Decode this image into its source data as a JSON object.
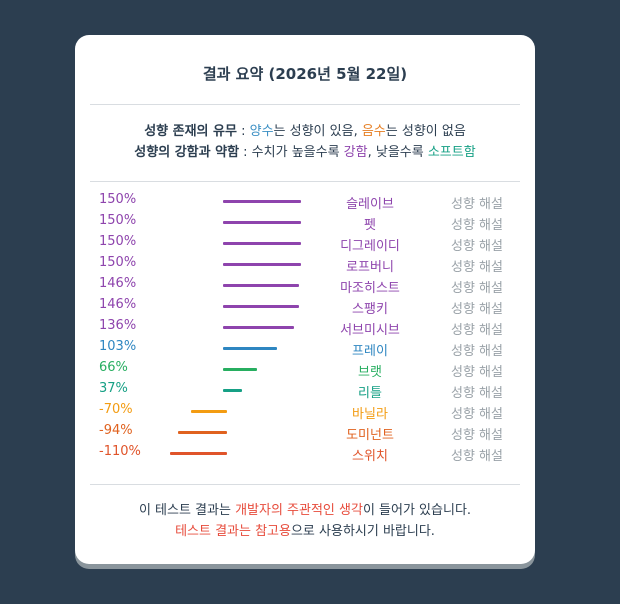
{
  "title": "결과 요약 (2026년 5월 22일)",
  "legend": {
    "line1": {
      "label": "성향 존재의 유무",
      "sep": " : ",
      "positive": "양수",
      "pos_text": "는 성향이 있음, ",
      "negative": "음수",
      "neg_text": "는 성향이 없음"
    },
    "line2": {
      "label": "성향의 강함과 약함",
      "sep": " : 수치가 높을수록 ",
      "strong": "강함",
      "mid": ", 낮을수록 ",
      "soft": "소프트함"
    }
  },
  "colors": {
    "purple": "#8e44ad",
    "blue": "#2e86c1",
    "green": "#27ae60",
    "teal": "#16a085",
    "orange": "#f39c12",
    "dark_orange": "#e0621f",
    "red_orange": "#e0542a"
  },
  "results": [
    {
      "pct": "150%",
      "value": 150,
      "name": "슬레이브",
      "link": "성향 해설",
      "color": "#8e44ad"
    },
    {
      "pct": "150%",
      "value": 150,
      "name": "펫",
      "link": "성향 해설",
      "color": "#8e44ad"
    },
    {
      "pct": "150%",
      "value": 150,
      "name": "디그레이디",
      "link": "성향 해설",
      "color": "#8e44ad"
    },
    {
      "pct": "150%",
      "value": 150,
      "name": "로프버니",
      "link": "성향 해설",
      "color": "#8e44ad"
    },
    {
      "pct": "146%",
      "value": 146,
      "name": "마조히스트",
      "link": "성향 해설",
      "color": "#8e44ad"
    },
    {
      "pct": "146%",
      "value": 146,
      "name": "스팽키",
      "link": "성향 해설",
      "color": "#8e44ad"
    },
    {
      "pct": "136%",
      "value": 136,
      "name": "서브미시브",
      "link": "성향 해설",
      "color": "#8e44ad"
    },
    {
      "pct": "103%",
      "value": 103,
      "name": "프레이",
      "link": "성향 해설",
      "color": "#2e86c1"
    },
    {
      "pct": "66%",
      "value": 66,
      "name": "브랫",
      "link": "성향 해설",
      "color": "#27ae60"
    },
    {
      "pct": "37%",
      "value": 37,
      "name": "리틀",
      "link": "성향 해설",
      "color": "#16a085"
    },
    {
      "pct": "-70%",
      "value": -70,
      "name": "바닐라",
      "link": "성향 해설",
      "color": "#f39c12"
    },
    {
      "pct": "-94%",
      "value": -94,
      "name": "도미넌트",
      "link": "성향 해설",
      "color": "#e0621f"
    },
    {
      "pct": "-110%",
      "value": -110,
      "name": "스위치",
      "link": "성향 해설",
      "color": "#e0542a"
    }
  ],
  "footer": {
    "line1_a": "이 테스트 결과는 ",
    "line1_b": "개발자의 주관적인 생각",
    "line1_c": "이 들어가 있습니다.",
    "line2_a": "테스트 결과는 참고용",
    "line2_b": "으로 사용하시기 바랍니다."
  }
}
